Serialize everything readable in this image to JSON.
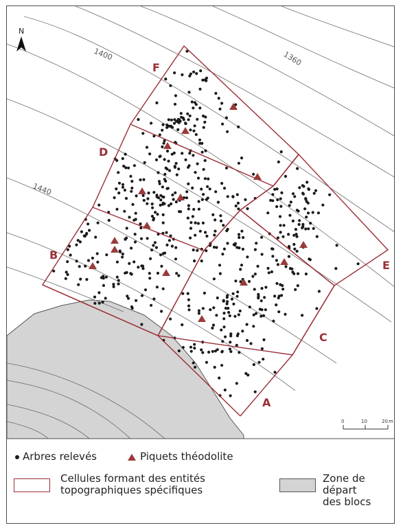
{
  "north_label": "N",
  "contours": [
    {
      "label": "1400"
    },
    {
      "label": "1360"
    },
    {
      "label": "1440"
    }
  ],
  "cells": [
    "A",
    "B",
    "C",
    "D",
    "E",
    "F"
  ],
  "scale_bar": {
    "ticks": [
      "0",
      "10",
      "20"
    ],
    "unit": "m"
  },
  "legend": {
    "trees": "Arbres relevés",
    "stakes": "Piquets théodolite",
    "cells_line1": "Cellules formant des entités",
    "cells_line2": "topographiques spécifiques",
    "zone_line1": "Zone de départ",
    "zone_line2": "des blocs"
  },
  "colors": {
    "cell_outline": "#9b2f37",
    "stake": "#9b3a3a",
    "tree": "#1a1a1a",
    "contour": "#7a7a7a",
    "release_zone": "#d4d4d4"
  }
}
